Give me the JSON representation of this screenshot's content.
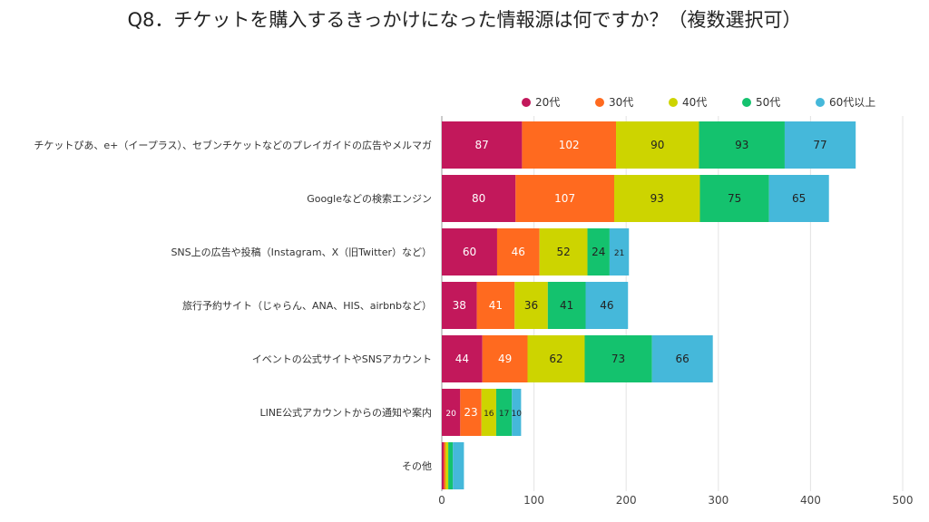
{
  "chart_data": {
    "type": "bar",
    "orientation": "horizontal",
    "stacked": true,
    "title": "Q8．チケットを購入するきっかけになった情報源は何ですか？（複数選択可）",
    "categories": [
      "チケットぴあ、e+（イープラス）、セブンチケットなどのプレイガイドの広告やメルマガ",
      "Googleなどの検索エンジン",
      "SNS上の広告や投稿（Instagram、X（旧Twitter）など）",
      "旅行予約サイト（じゃらん、ANA、HIS、airbnbなど）",
      "イベントの公式サイトやSNSアカウント",
      "LINE公式アカウントからの通知や案内",
      "その他"
    ],
    "series": [
      {
        "name": "20代",
        "color": "#C2185B",
        "values": [
          87,
          80,
          60,
          38,
          44,
          20,
          2
        ]
      },
      {
        "name": "30代",
        "color": "#FF6A1F",
        "values": [
          102,
          107,
          46,
          41,
          49,
          23,
          2
        ]
      },
      {
        "name": "40代",
        "color": "#CDD400",
        "values": [
          90,
          93,
          52,
          36,
          62,
          16,
          3
        ]
      },
      {
        "name": "50代",
        "color": "#14C26E",
        "values": [
          93,
          75,
          24,
          41,
          73,
          17,
          5
        ]
      },
      {
        "name": "60代以上",
        "color": "#45B8DA",
        "values": [
          77,
          65,
          21,
          46,
          66,
          10,
          12
        ]
      }
    ],
    "show_labels": [
      true,
      true,
      true,
      true,
      true,
      true,
      false
    ],
    "xlim": [
      0,
      500
    ],
    "xticks": [
      0,
      100,
      200,
      300,
      400,
      500
    ],
    "grid": true,
    "legend": "top"
  }
}
